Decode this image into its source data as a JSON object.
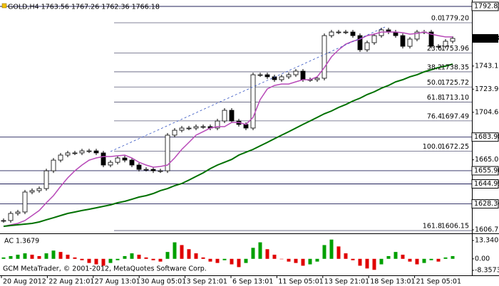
{
  "chart_data": {
    "type": "candlestick",
    "title": "GOLD,H4 1763.56 1767.26 1762.36 1766.18",
    "ylim": [
      1604.4,
      1798.16
    ],
    "yticks": [
      1743.15,
      {
        "value": 1723.9,
        "label": "1723.90"
      },
      1704.65,
      1665.05,
      1606.75
    ],
    "price_levels": [
      1792.83,
      1683.98,
      1655.96,
      1644.99,
      1628.34
    ],
    "current_price": 1766.18,
    "fibonacci": [
      {
        "level": "0.0",
        "price": {
          "value": 1779.2,
          "label": "1779.20"
        }
      },
      {
        "level": "23.6",
        "price": 1753.96
      },
      {
        "level": "38.2",
        "price": 1738.35
      },
      {
        "level": "50.0",
        "price": 1725.72
      },
      {
        "level": "61.8",
        "price": {
          "value": 1713.1,
          "label": "1713.10"
        }
      },
      {
        "level": "76.4",
        "price": 1697.49
      },
      {
        "level": "100.0",
        "price": 1672.25
      },
      {
        "level": "161.8",
        "price": 1606.15
      }
    ],
    "time_labels": [
      "20 Aug 2012",
      "22 Aug 21:01",
      "27 Aug 13:01",
      "30 Aug 05:01",
      "3 Sep 21:01",
      "6 Sep 13:01",
      "11 Sep 05:01",
      "13 Sep 21:01",
      "18 Sep 13:01",
      "21 Sep 05:01"
    ],
    "close": [
      1614.5,
      1620.4,
      1621.6,
      1638.2,
      1639.4,
      1641.1,
      1655.9,
      1664.8,
      1669.0,
      1670.8,
      1670.8,
      1672.5,
      1672.5,
      1670.8,
      1660.7,
      1663.0,
      1666.6,
      1664.8,
      1660.7,
      1657.1,
      1657.1,
      1655.9,
      1655.9,
      1685.6,
      1689.7,
      1691.5,
      1691.5,
      1692.7,
      1692.7,
      1691.5,
      1697.4,
      1706.3,
      1697.4,
      1694.5,
      1691.5,
      1735.9,
      1735.9,
      1734.2,
      1731.8,
      1734.2,
      1735.9,
      1738.9,
      1731.8,
      1731.8,
      1733.0,
      1768.5,
      1771.5,
      1771.5,
      1771.5,
      1768.5,
      1756.7,
      1762.6,
      1768.5,
      1773.3,
      1771.5,
      1768.5,
      1759.6,
      1765.6,
      1771.5,
      1771.5,
      1759.6,
      1759.6,
      1763.8,
      1766.18
    ],
    "series": [
      {
        "color": "#b84ab8",
        "values": [
          1609.7,
          1610.9,
          1612.1,
          1614.5,
          1618.6,
          1622.8,
          1629.3,
          1635.2,
          1642.9,
          1650.0,
          1655.9,
          1660.7,
          1664.8,
          1666.6,
          1667.8,
          1667.8,
          1668.4,
          1669.0,
          1666.6,
          1663.0,
          1660.7,
          1658.9,
          1659.5,
          1660.7,
          1666.6,
          1673.7,
          1679.6,
          1685.6,
          1688.5,
          1691.5,
          1692.7,
          1692.7,
          1696.2,
          1696.2,
          1694.5,
          1700.4,
          1715.2,
          1724.1,
          1727.0,
          1728.2,
          1728.2,
          1730.0,
          1731.8,
          1731.8,
          1734.2,
          1741.9,
          1750.8,
          1756.7,
          1761.4,
          1763.8,
          1765.6,
          1768.5,
          1769.7,
          1771.5,
          1771.5,
          1771.5,
          1770.9,
          1769.7,
          1770.3,
          1771.5,
          1769.7,
          1768.5,
          1767.4,
          1767.4
        ]
      },
      {
        "color": "#007000",
        "values": [
          1609.7,
          1610.3,
          1610.9,
          1611.5,
          1612.1,
          1613.3,
          1615.1,
          1616.8,
          1618.6,
          1620.4,
          1621.6,
          1622.8,
          1623.9,
          1625.1,
          1626.3,
          1627.5,
          1629.3,
          1630.5,
          1632.2,
          1634.0,
          1635.2,
          1637.0,
          1639.4,
          1641.1,
          1643.5,
          1645.3,
          1648.2,
          1651.2,
          1654.2,
          1657.7,
          1660.7,
          1663.0,
          1665.4,
          1669.0,
          1671.4,
          1673.7,
          1676.7,
          1679.6,
          1682.6,
          1685.6,
          1688.5,
          1691.5,
          1694.5,
          1697.4,
          1700.4,
          1703.4,
          1705.7,
          1708.7,
          1711.1,
          1714.0,
          1716.4,
          1719.4,
          1721.7,
          1724.7,
          1727.0,
          1730.0,
          1731.8,
          1734.2,
          1735.9,
          1738.3,
          1740.1,
          1741.9,
          1743.1,
          1744.8
        ]
      }
    ],
    "indicator": {
      "title": "AC 1.3679",
      "ylim": [
        -11.47,
        16.96
      ],
      "yticks": [
        13.3407,
        {
          "value": 0,
          "label": "0.00"
        },
        -8.3573
      ],
      "up_color": "#00a000",
      "down_color": "#e00000",
      "values": [
        1,
        2,
        3,
        4,
        3,
        2,
        4,
        6,
        5,
        3,
        1,
        -1,
        -3,
        -4,
        -5,
        -3,
        -1,
        2,
        4,
        3,
        1,
        -1,
        -2,
        5,
        12,
        10,
        7,
        4,
        1,
        -2,
        -3,
        -1,
        -4,
        -6,
        -3,
        8,
        12,
        7,
        3,
        0,
        -2,
        -3,
        -5,
        -4,
        -2,
        10,
        14,
        9,
        4,
        -1,
        -5,
        -7,
        -8,
        -4,
        2,
        5,
        3,
        -2,
        -4,
        -3,
        -1,
        -2,
        1,
        2
      ]
    },
    "footer": "GCM MetaTrader, © 2001-2012, MetaQuotes Software Corp."
  }
}
